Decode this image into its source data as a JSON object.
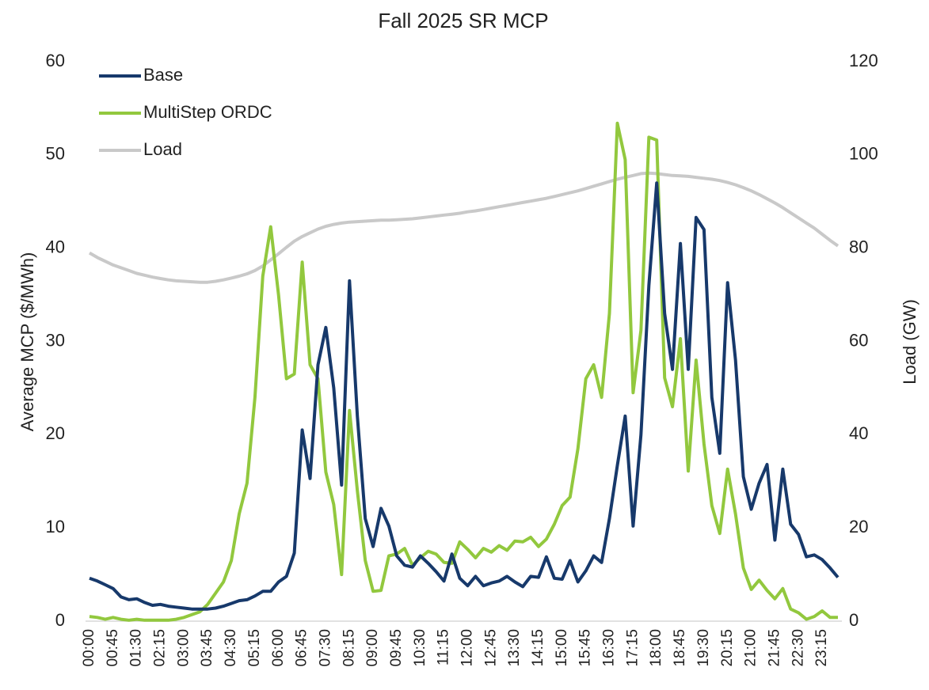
{
  "chart_data": {
    "type": "line",
    "title": "Fall 2025 SR MCP",
    "y_label": "Average MCP ($/MWh)",
    "y2_label": "Load (GW)",
    "categories": [
      "00:00",
      null,
      null,
      "00:45",
      null,
      null,
      "01:30",
      null,
      null,
      "02:15",
      null,
      null,
      "03:00",
      null,
      null,
      "03:45",
      null,
      null,
      "04:30",
      null,
      null,
      "05:15",
      null,
      null,
      "06:00",
      null,
      null,
      "06:45",
      null,
      null,
      "07:30",
      null,
      null,
      "08:15",
      null,
      null,
      "09:00",
      null,
      null,
      "09:45",
      null,
      null,
      "10:30",
      null,
      null,
      "11:15",
      null,
      null,
      "12:00",
      null,
      null,
      "12:45",
      null,
      null,
      "13:30",
      null,
      null,
      "14:15",
      null,
      null,
      "15:00",
      null,
      null,
      "15:45",
      null,
      null,
      "16:30",
      null,
      null,
      "17:15",
      null,
      null,
      "18:00",
      null,
      null,
      "18:45",
      null,
      null,
      "19:30",
      null,
      null,
      "20:15",
      null,
      null,
      "21:00",
      null,
      null,
      "21:45",
      null,
      null,
      "22:30",
      null,
      null,
      "23:15",
      null,
      null
    ],
    "series": [
      {
        "name": "Base",
        "color": "#17396b",
        "values": [
          4.6,
          4.3,
          3.9,
          3.5,
          2.6,
          2.3,
          2.4,
          2.0,
          1.7,
          1.8,
          1.6,
          1.5,
          1.4,
          1.3,
          1.3,
          1.3,
          1.4,
          1.6,
          1.9,
          2.2,
          2.3,
          2.7,
          3.2,
          3.2,
          4.2,
          4.8,
          7.3,
          20.5,
          15.3,
          27.5,
          31.5,
          25,
          14.6,
          36.5,
          22,
          11,
          8,
          12.1,
          10.2,
          7,
          6,
          5.8,
          7,
          6.2,
          5.3,
          4.3,
          7.2,
          4.6,
          3.8,
          4.8,
          3.8,
          4.1,
          4.3,
          4.8,
          4.2,
          3.7,
          4.8,
          4.7,
          6.9,
          4.6,
          4.5,
          6.5,
          4.2,
          5.4,
          7,
          6.3,
          11,
          16.7,
          22,
          10.2,
          20,
          36,
          47,
          33,
          27,
          40.5,
          27,
          43.3,
          42,
          24,
          18,
          36.3,
          28,
          15.5,
          12,
          14.8,
          16.8,
          8.7,
          16.3,
          10.4,
          9.3,
          6.9,
          7.1,
          6.6,
          5.7,
          4.7
        ]
      },
      {
        "name": "MultiStep ORDC",
        "color": "#92c83e",
        "values": [
          0.5,
          0.4,
          0.2,
          0.4,
          0.2,
          0.1,
          0.2,
          0.1,
          0.1,
          0.1,
          0.1,
          0.2,
          0.4,
          0.7,
          1.0,
          1.8,
          3.0,
          4.2,
          6.5,
          11.5,
          14.8,
          24,
          37,
          42.3,
          35,
          26,
          26.5,
          38.5,
          27.5,
          26,
          16,
          12.5,
          5,
          22.6,
          14,
          6.5,
          3.2,
          3.3,
          7,
          7.2,
          7.8,
          6,
          6.8,
          7.5,
          7.2,
          6.3,
          6.2,
          8.5,
          7.7,
          6.8,
          7.8,
          7.4,
          8.1,
          7.6,
          8.6,
          8.5,
          9,
          8,
          8.8,
          10.4,
          12.4,
          13.3,
          18.5,
          26,
          27.5,
          24,
          33,
          53.4,
          49.5,
          24.5,
          31.2,
          51.9,
          51.6,
          26.1,
          23,
          30.3,
          16.1,
          28,
          19,
          12.4,
          9.4,
          16.3,
          11.5,
          5.7,
          3.4,
          4.4,
          3.3,
          2.4,
          3.5,
          1.3,
          0.9,
          0.2,
          0.5,
          1.1,
          0.4,
          0.4
        ]
      },
      {
        "name": "Load",
        "color": "#c9c9c9",
        "axis": "y2",
        "values": [
          79,
          78,
          77.2,
          76.4,
          75.8,
          75.2,
          74.6,
          74.2,
          73.8,
          73.5,
          73.2,
          73,
          72.9,
          72.8,
          72.7,
          72.7,
          72.9,
          73.2,
          73.6,
          74,
          74.5,
          75.2,
          76.2,
          77.5,
          78.8,
          80.2,
          81.5,
          82.5,
          83.3,
          84.1,
          84.7,
          85.1,
          85.4,
          85.6,
          85.7,
          85.8,
          85.9,
          86,
          86,
          86.1,
          86.2,
          86.3,
          86.5,
          86.7,
          86.9,
          87.1,
          87.3,
          87.5,
          87.8,
          88,
          88.3,
          88.6,
          88.9,
          89.2,
          89.5,
          89.8,
          90.1,
          90.4,
          90.7,
          91.1,
          91.5,
          91.9,
          92.3,
          92.8,
          93.3,
          93.8,
          94.3,
          94.8,
          95.2,
          95.6,
          96,
          96.1,
          96,
          95.8,
          95.6,
          95.5,
          95.4,
          95.2,
          95,
          94.8,
          94.5,
          94.1,
          93.6,
          93,
          92.3,
          91.5,
          90.6,
          89.7,
          88.7,
          87.6,
          86.5,
          85.4,
          84.3,
          83,
          81.7,
          80.5
        ]
      }
    ],
    "ylim": [
      0,
      60
    ],
    "yticks": [
      0,
      10,
      20,
      30,
      40,
      50,
      60
    ],
    "y2lim": [
      0,
      120
    ],
    "y2ticks": [
      0,
      20,
      40,
      60,
      80,
      100,
      120
    ],
    "grid": false,
    "legend": "top-left"
  }
}
